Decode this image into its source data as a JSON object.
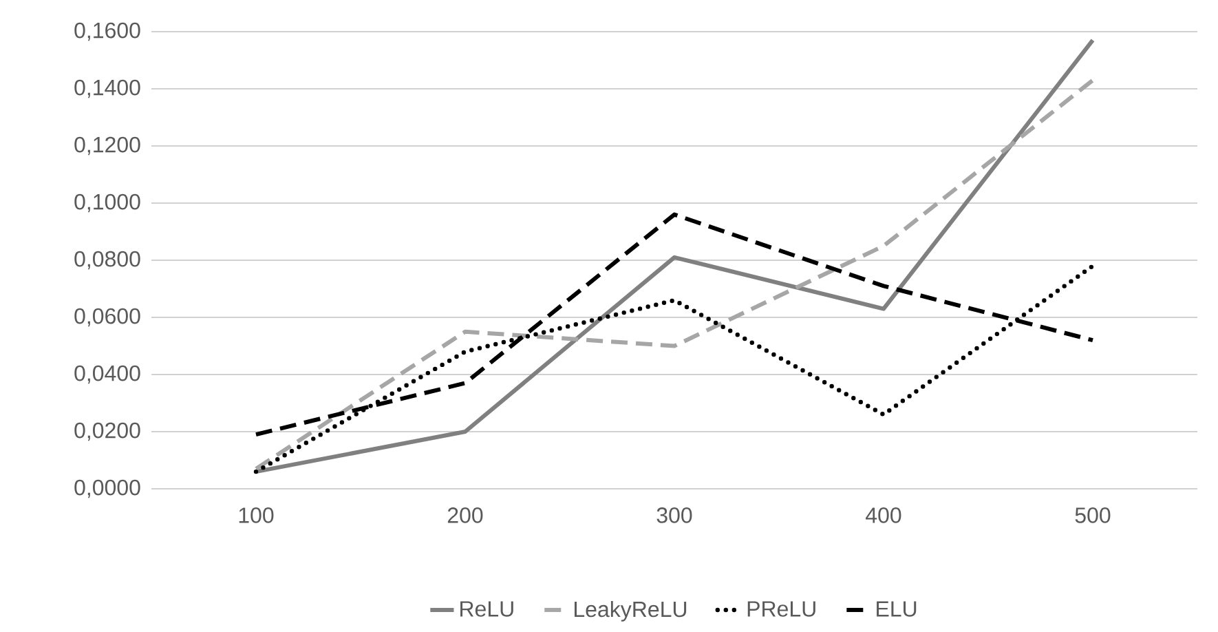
{
  "chart_data": {
    "type": "line",
    "categories": [
      "100",
      "200",
      "300",
      "400",
      "500"
    ],
    "series": [
      {
        "name": "ReLU",
        "color": "#808080",
        "line_style": "solid",
        "values": [
          0.006,
          0.02,
          0.081,
          0.063,
          0.157
        ]
      },
      {
        "name": "LeakyReLU",
        "color": "#a6a6a6",
        "line_style": "dashed",
        "values": [
          0.007,
          0.055,
          0.05,
          0.085,
          0.143
        ]
      },
      {
        "name": "PReLU",
        "color": "#000000",
        "line_style": "dotted",
        "values": [
          0.006,
          0.048,
          0.066,
          0.026,
          0.078
        ]
      },
      {
        "name": "ELU",
        "color": "#000000",
        "line_style": "dashed",
        "values": [
          0.019,
          0.037,
          0.096,
          0.071,
          0.052
        ]
      }
    ],
    "ylim": [
      0,
      0.16
    ],
    "yticks": [
      {
        "value": 0,
        "label": "0,0000"
      },
      {
        "value": 0.02,
        "label": "0,0200"
      },
      {
        "value": 0.04,
        "label": "0,0400"
      },
      {
        "value": 0.06,
        "label": "0,0600"
      },
      {
        "value": 0.08,
        "label": "0,0800"
      },
      {
        "value": 0.1,
        "label": "0,1000"
      },
      {
        "value": 0.12,
        "label": "0,1200"
      },
      {
        "value": 0.14,
        "label": "0,1400"
      },
      {
        "value": 0.16,
        "label": "0,1600"
      }
    ],
    "grid": "y",
    "legend": "bottom",
    "marker": "none"
  }
}
